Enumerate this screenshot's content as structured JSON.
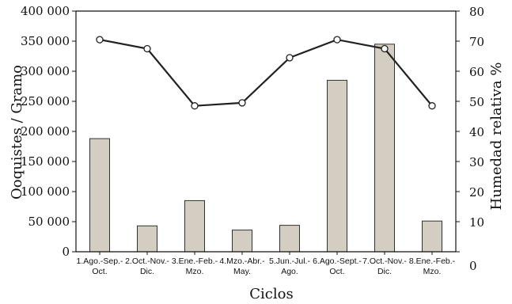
{
  "chart_data": {
    "type": "bar",
    "categories": [
      [
        "1.Ago.-Sep.-",
        "Oct."
      ],
      [
        "2.Oct.-Nov.-",
        "Dic."
      ],
      [
        "3.Ene.-Feb.-",
        "Mzo."
      ],
      [
        "4.Mzo.-Abr.-",
        "May."
      ],
      [
        "5.Jun.-Jul.-",
        "Ago."
      ],
      [
        "6.Ago.-Sept.-",
        "Oct."
      ],
      [
        "7.Oct.-Nov.-",
        "Dic."
      ],
      [
        "8.Ene.-Feb.-",
        "Mzo."
      ]
    ],
    "series": [
      {
        "type": "bar",
        "axis": "left",
        "values": [
          188000,
          43000,
          85000,
          36000,
          44000,
          285000,
          345000,
          51000
        ]
      },
      {
        "type": "line",
        "axis": "right",
        "values": [
          70.5,
          67.5,
          48.5,
          49.5,
          64.5,
          70.5,
          67.5,
          48.5
        ]
      }
    ],
    "xlabel": "Ciclos",
    "ylabel": "Ooquistes / Gramo",
    "y2label": "Humedad relativa %",
    "ylim": [
      0,
      400000
    ],
    "y2lim": [
      0,
      80
    ],
    "yticks": [
      "0",
      "50 000",
      "100 000",
      "150 000",
      "200 000",
      "250 000",
      "300 000",
      "350 000",
      "400 000"
    ],
    "y2ticks": [
      "0",
      "10",
      "20",
      "30",
      "40",
      "50",
      "60",
      "70",
      "80"
    ],
    "grid": false,
    "colors": {
      "bar_fill": "#d4cdc1",
      "bar_stroke": "#333333",
      "line": "#222222",
      "marker_fill": "#ffffff"
    }
  }
}
